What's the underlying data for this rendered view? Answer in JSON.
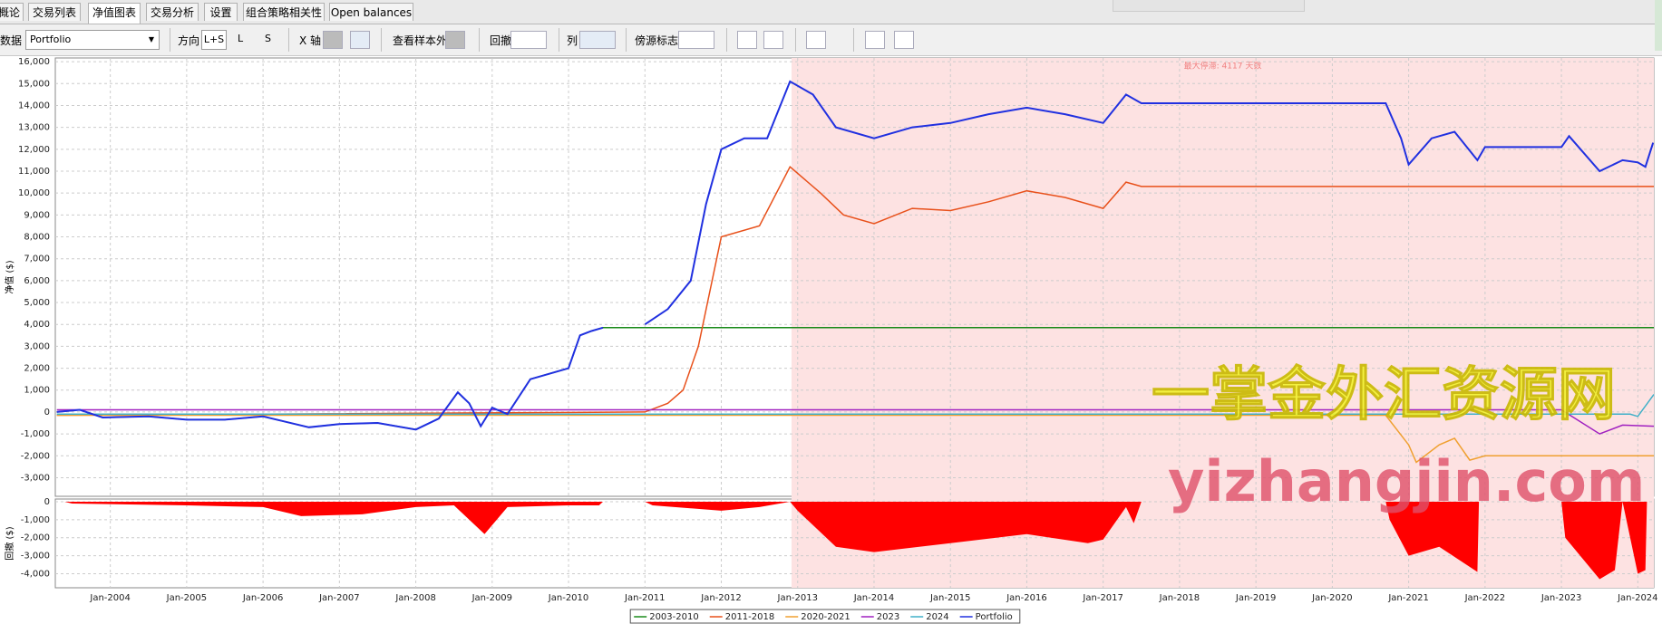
{
  "tabs": [
    "概论",
    "交易列表",
    "净值图表",
    "交易分析",
    "设置",
    "组合策略相关性",
    "Open balances"
  ],
  "active_tab": 2,
  "toolbar": {
    "data_label": "数据",
    "data_value": "Portfolio",
    "direction_label": "方向",
    "direction_options": [
      "L+S",
      "L",
      "S"
    ],
    "x_axis_label": "X 轴",
    "oos_label": "查看样本外",
    "drawdown_label": "回撤",
    "column_label": "列",
    "marker_label": "傍源标志"
  },
  "watermark": {
    "cn": "一掌金外汇资源网",
    "url": "yizhangjin.com"
  },
  "chart_data": [
    {
      "type": "line",
      "y_label": "净值 ($)",
      "xlim": [
        2003.28,
        2024.21
      ],
      "ylim": [
        -3850,
        16170
      ],
      "xticks": [
        {
          "value": 2004,
          "label": "Jan-2004"
        },
        {
          "value": 2005,
          "label": "Jan-2005"
        },
        {
          "value": 2006,
          "label": "Jan-2006"
        },
        {
          "value": 2007,
          "label": "Jan-2007"
        },
        {
          "value": 2008,
          "label": "Jan-2008"
        },
        {
          "value": 2009,
          "label": "Jan-2009"
        },
        {
          "value": 2010,
          "label": "Jan-2010"
        },
        {
          "value": 2011,
          "label": "Jan-2011"
        },
        {
          "value": 2012,
          "label": "Jan-2012"
        },
        {
          "value": 2013,
          "label": "Jan-2013"
        },
        {
          "value": 2014,
          "label": "Jan-2014"
        },
        {
          "value": 2015,
          "label": "Jan-2015"
        },
        {
          "value": 2016,
          "label": "Jan-2016"
        },
        {
          "value": 2017,
          "label": "Jan-2017"
        },
        {
          "value": 2018,
          "label": "Jan-2018"
        },
        {
          "value": 2019,
          "label": "Jan-2019"
        },
        {
          "value": 2020,
          "label": "Jan-2020"
        },
        {
          "value": 2021,
          "label": "Jan-2021"
        },
        {
          "value": 2022,
          "label": "Jan-2022"
        },
        {
          "value": 2023,
          "label": "Jan-2023"
        },
        {
          "value": 2024,
          "label": "Jan-2024"
        }
      ],
      "yticks": [
        {
          "value": 16000,
          "label": "16,000"
        },
        {
          "value": 15000,
          "label": "15,000"
        },
        {
          "value": 14000,
          "label": "14,000"
        },
        {
          "value": 13000,
          "label": "13,000"
        },
        {
          "value": 12000,
          "label": "12,000"
        },
        {
          "value": 11000,
          "label": "11,000"
        },
        {
          "value": 10000,
          "label": "10,000"
        },
        {
          "value": 9000,
          "label": "9,000"
        },
        {
          "value": 8000,
          "label": "8,000"
        },
        {
          "value": 7000,
          "label": "7,000"
        },
        {
          "value": 6000,
          "label": "6,000"
        },
        {
          "value": 5000,
          "label": "5,000"
        },
        {
          "value": 4000,
          "label": "4,000"
        },
        {
          "value": 3000,
          "label": "3,000"
        },
        {
          "value": 2000,
          "label": "2,000"
        },
        {
          "value": 1000,
          "label": "1,000"
        },
        0,
        {
          "value": -1000,
          "label": "-1,000"
        },
        {
          "value": -2000,
          "label": "-2,000"
        },
        {
          "value": -3000,
          "label": "-3,000"
        }
      ],
      "grid": true,
      "shade": {
        "from": 2012.92,
        "to": 2024.21,
        "label": "最大停滞: 4117 天数",
        "color": "#fde2e2"
      },
      "series": [
        {
          "name": "2003-2010",
          "color": "#1a8a1a",
          "x": [
            2003.3,
            2003.6,
            2003.9,
            2004.5,
            2005.0,
            2005.5,
            2006.0,
            2006.3,
            2006.6,
            2007.0,
            2007.5,
            2008.0,
            2008.3,
            2008.55,
            2008.7,
            2008.85,
            2009.0,
            2009.2,
            2009.5,
            2009.8,
            2010.0,
            2010.15,
            2010.3,
            2010.45,
            2024.21
          ],
          "values": [
            0,
            100,
            -250,
            -200,
            -350,
            -350,
            -200,
            -450,
            -700,
            -550,
            -500,
            -800,
            -300,
            900,
            400,
            -650,
            200,
            -100,
            1500,
            1800,
            2000,
            3500,
            3700,
            3850,
            3850
          ]
        },
        {
          "name": "2011-2018",
          "color": "#e8501a",
          "x": [
            2003.3,
            2011.0,
            2011.3,
            2011.5,
            2011.7,
            2012.0,
            2012.5,
            2012.9,
            2013.3,
            2013.6,
            2014.0,
            2014.5,
            2015.0,
            2015.5,
            2016.0,
            2016.5,
            2017.0,
            2017.3,
            2017.5,
            2024.21
          ],
          "values": [
            -150,
            0,
            400,
            1000,
            3000,
            8000,
            8500,
            11200,
            10000,
            9000,
            8600,
            9300,
            9200,
            9600,
            10100,
            9800,
            9300,
            10500,
            10300,
            10300
          ]
        },
        {
          "name": "2020-2021",
          "color": "#f0a030",
          "x": [
            2003.3,
            2020.7,
            2021.0,
            2021.1,
            2021.4,
            2021.6,
            2021.8,
            2022.0,
            2024.21
          ],
          "values": [
            -150,
            -150,
            -1500,
            -2300,
            -1500,
            -1200,
            -2200,
            -2000,
            -2000
          ]
        },
        {
          "name": "2023",
          "color": "#a020c0",
          "x": [
            2003.3,
            2023.0,
            2023.5,
            2023.8,
            2024.21
          ],
          "values": [
            100,
            100,
            -1000,
            -600,
            -650
          ]
        },
        {
          "name": "2024",
          "color": "#40b0c8",
          "x": [
            2003.3,
            2023.9,
            2024.0,
            2024.21
          ],
          "values": [
            -100,
            -100,
            -200,
            800
          ]
        },
        {
          "name": "Portfolio",
          "color": "#2030e0",
          "x": [
            2003.3,
            2003.6,
            2003.9,
            2004.5,
            2005.0,
            2005.5,
            2006.0,
            2006.3,
            2006.6,
            2007.0,
            2007.5,
            2008.0,
            2008.3,
            2008.55,
            2008.7,
            2008.85,
            2009.0,
            2009.2,
            2009.5,
            2009.8,
            2010.0,
            2010.15,
            2010.3,
            2010.45,
            2010.7,
            2011.0,
            2011.3,
            2011.6,
            2011.8,
            2012.0,
            2012.3,
            2012.6,
            2012.9,
            2013.2,
            2013.5,
            2014.0,
            2014.5,
            2015.0,
            2015.5,
            2016.0,
            2016.5,
            2017.0,
            2017.3,
            2017.5,
            2020.7,
            2020.9,
            2021.0,
            2021.3,
            2021.6,
            2021.9,
            2022.0,
            2023.0,
            2023.1,
            2023.5,
            2023.8,
            2024.0,
            2024.1,
            2024.2
          ],
          "values": [
            0,
            100,
            -250,
            -200,
            -350,
            -350,
            -200,
            -450,
            -700,
            -550,
            -500,
            -800,
            -300,
            900,
            400,
            -650,
            200,
            -100,
            1500,
            1800,
            2000,
            3500,
            3700,
            3850,
            null,
            4000,
            4700,
            6000,
            9500,
            12000,
            12500,
            12500,
            15100,
            14500,
            13000,
            12500,
            13000,
            13200,
            13600,
            13900,
            13600,
            13200,
            14500,
            14100,
            14100,
            12500,
            11300,
            12500,
            12800,
            11500,
            12100,
            12100,
            12600,
            11000,
            11500,
            11400,
            11200,
            12300
          ]
        }
      ]
    },
    {
      "type": "area",
      "y_label": "回撤 ($)",
      "color": "#ff0000",
      "ylim": [
        -4780,
        150
      ],
      "yticks": [
        0,
        {
          "value": -1000,
          "label": "-1,000"
        },
        {
          "value": -2000,
          "label": "-2,000"
        },
        {
          "value": -3000,
          "label": "-3,000"
        },
        {
          "value": -4000,
          "label": "-4,000"
        }
      ],
      "x": [
        2003.4,
        2003.5,
        2005.0,
        2006.0,
        2006.5,
        2007.3,
        2008.0,
        2008.5,
        2008.9,
        2009.2,
        2010.0,
        2010.4,
        2010.45,
        2011.0,
        2011.1,
        2012.0,
        2012.5,
        2012.9,
        2013.0,
        2013.5,
        2014.0,
        2015.0,
        2016.0,
        2016.8,
        2017.0,
        2017.3,
        2017.4,
        2017.5,
        2020.7,
        2020.75,
        2021.0,
        2021.4,
        2021.9,
        2021.92,
        2023.0,
        2023.05,
        2023.5,
        2023.7,
        2023.8,
        2024.0,
        2024.1,
        2024.12
      ],
      "values": [
        0,
        -100,
        -200,
        -300,
        -800,
        -700,
        -300,
        -200,
        -1800,
        -300,
        -200,
        -200,
        0,
        0,
        -200,
        -500,
        -300,
        0,
        -500,
        -2500,
        -2800,
        -2300,
        -1800,
        -2300,
        -2100,
        -300,
        -1200,
        0,
        0,
        -1000,
        -3000,
        -2500,
        -3900,
        0,
        0,
        -2000,
        -4300,
        -3800,
        0,
        -4000,
        -3800,
        0
      ]
    }
  ]
}
